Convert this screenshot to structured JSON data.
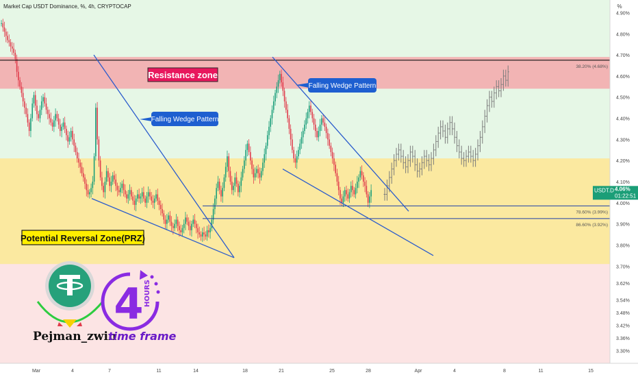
{
  "header": {
    "symbol_title": "Market Cap USDT Dominance, %, 4h, CRYPTOCAP",
    "unit_label": "%"
  },
  "colors": {
    "background_upper": "#e6f7e6",
    "background_lower": "#fce4e4",
    "resistance_zone": "#f2b4b4",
    "prz_zone": "#fbe9a0",
    "candle_up": "#1a9e7a",
    "candle_down": "#e03b4b",
    "projection": "#7a7a7a",
    "pattern_line": "#2b5ccc",
    "price_tag": "#1b9e77",
    "annotation_bg": "#1e5fd0",
    "resistance_label_bg": "#e8175d"
  },
  "chart_data": {
    "type": "candlestick",
    "ylim": [
      3.24,
      4.96
    ],
    "x_range": [
      0,
      930
    ],
    "y_ticks": [
      "4.90%",
      "4.80%",
      "4.70%",
      "4.60%",
      "4.50%",
      "4.40%",
      "4.30%",
      "4.20%",
      "4.10%",
      "4.00%",
      "3.90%",
      "3.80%",
      "3.70%",
      "3.62%",
      "3.54%",
      "3.48%",
      "3.42%",
      "3.36%",
      "3.30%"
    ],
    "x_ticks": [
      {
        "label": "Mar",
        "x": 53
      },
      {
        "label": "4",
        "x": 106
      },
      {
        "label": "7",
        "x": 160
      },
      {
        "label": "11",
        "x": 232
      },
      {
        "label": "14",
        "x": 286
      },
      {
        "label": "18",
        "x": 358
      },
      {
        "label": "21",
        "x": 411
      },
      {
        "label": "25",
        "x": 485
      },
      {
        "label": "28",
        "x": 538
      },
      {
        "label": "Apr",
        "x": 611
      },
      {
        "label": "4",
        "x": 664
      },
      {
        "label": "8",
        "x": 737
      },
      {
        "label": "11",
        "x": 790
      },
      {
        "label": "15",
        "x": 863
      }
    ],
    "resistance_zone": {
      "label": "Resistance zone",
      "low": 4.54,
      "high": 4.69
    },
    "prz_zone": {
      "label": "Potential Reversal Zone(PRZ)",
      "low": 3.71,
      "high": 4.21
    },
    "horizontal_levels": [
      {
        "name": "top-level",
        "value": 4.675,
        "label": "38.20% (4.68%)",
        "color": "#111111"
      },
      {
        "name": "fib-786",
        "value": 3.985,
        "label": "78.60% (3.99%)",
        "color": "#1c3fa8"
      },
      {
        "name": "fib-866",
        "value": 3.925,
        "label": "86.60% (3.92%)",
        "color": "#1c3fa8"
      }
    ],
    "current_price": {
      "symbol": "USDT.D",
      "value": "4.06%",
      "countdown": "01:22:51",
      "y_value": 4.06
    },
    "annotations": [
      {
        "text": "Falling Wedge Pattern"
      },
      {
        "text": "Falling Wedge Pattern"
      }
    ],
    "wedges": [
      {
        "upper": [
          [
            137,
            4.7
          ],
          [
            342,
            3.74
          ]
        ],
        "lower": [
          [
            134,
            4.02
          ],
          [
            342,
            3.74
          ]
        ]
      },
      {
        "upper": [
          [
            398,
            4.69
          ],
          [
            597,
            3.96
          ]
        ],
        "lower": [
          [
            413,
            4.16
          ],
          [
            633,
            3.75
          ]
        ]
      }
    ],
    "series": [
      {
        "name": "candles",
        "style": "filled",
        "x_start": 2,
        "step": 2.26,
        "close": [
          4.85,
          4.83,
          4.81,
          4.79,
          4.77,
          4.76,
          4.74,
          4.73,
          4.71,
          4.68,
          4.62,
          4.58,
          4.55,
          4.52,
          4.48,
          4.45,
          4.42,
          4.38,
          4.34,
          4.4,
          4.47,
          4.51,
          4.46,
          4.42,
          4.4,
          4.44,
          4.48,
          4.5,
          4.47,
          4.44,
          4.42,
          4.4,
          4.38,
          4.36,
          4.39,
          4.42,
          4.4,
          4.37,
          4.34,
          4.36,
          4.38,
          4.35,
          4.32,
          4.29,
          4.31,
          4.34,
          4.3,
          4.27,
          4.24,
          4.21,
          4.19,
          4.17,
          4.14,
          4.12,
          4.09,
          4.06,
          4.04,
          4.05,
          4.07,
          4.1,
          4.22,
          4.45,
          4.3,
          4.2,
          4.12,
          4.08,
          4.05,
          4.1,
          4.15,
          4.12,
          4.08,
          4.1,
          4.13,
          4.11,
          4.08,
          4.06,
          4.05,
          4.07,
          4.09,
          4.06,
          4.04,
          4.02,
          4.04,
          4.06,
          4.03,
          4.01,
          3.99,
          4.02,
          4.04,
          4.02,
          4.03,
          4.05,
          4.02,
          4.0,
          4.03,
          4.05,
          4.03,
          4.01,
          4.0,
          4.02,
          4.04,
          4.01,
          3.99,
          3.97,
          3.95,
          3.92,
          3.9,
          3.92,
          3.94,
          3.91,
          3.89,
          3.88,
          3.9,
          3.92,
          3.89,
          3.87,
          3.86,
          3.88,
          3.9,
          3.93,
          3.91,
          3.89,
          3.87,
          3.9,
          3.92,
          3.9,
          3.88,
          3.86,
          3.85,
          3.84,
          3.86,
          3.85,
          3.84,
          3.87,
          3.86,
          3.88,
          3.92,
          3.97,
          4.02,
          4.07,
          4.1,
          4.06,
          4.03,
          4.07,
          4.12,
          4.17,
          4.22,
          4.15,
          4.1,
          4.06,
          4.08,
          4.12,
          4.09,
          4.05,
          4.08,
          4.12,
          4.16,
          4.2,
          4.25,
          4.28,
          4.24,
          4.2,
          4.16,
          4.12,
          4.14,
          4.16,
          4.14,
          4.12,
          4.15,
          4.19,
          4.23,
          4.27,
          4.32,
          4.36,
          4.4,
          4.44,
          4.48,
          4.52,
          4.55,
          4.58,
          4.61,
          4.57,
          4.53,
          4.48,
          4.44,
          4.4,
          4.35,
          4.3,
          4.25,
          4.21,
          4.19,
          4.22,
          4.25,
          4.28,
          4.31,
          4.34,
          4.37,
          4.4,
          4.43,
          4.46,
          4.43,
          4.4,
          4.37,
          4.34,
          4.31,
          4.34,
          4.37,
          4.4,
          4.38,
          4.36,
          4.33,
          4.3,
          4.27,
          4.24,
          4.21,
          4.18,
          4.14,
          4.1,
          4.06,
          4.02,
          4.0,
          4.03,
          4.06,
          4.04,
          4.02,
          4.05,
          4.08,
          4.06,
          4.04,
          4.07,
          4.1,
          4.12,
          4.15,
          4.13,
          4.1,
          4.08,
          4.04,
          4.0,
          4.03,
          4.06
        ]
      },
      {
        "name": "projection",
        "style": "bar",
        "x_start": 562,
        "step": 3.4,
        "close": [
          4.04,
          4.08,
          4.12,
          4.16,
          4.2,
          4.23,
          4.25,
          4.22,
          4.19,
          4.17,
          4.2,
          4.24,
          4.22,
          4.18,
          4.15,
          4.16,
          4.19,
          4.22,
          4.2,
          4.18,
          4.21,
          4.25,
          4.29,
          4.33,
          4.36,
          4.34,
          4.31,
          4.35,
          4.38,
          4.35,
          4.31,
          4.27,
          4.24,
          4.21,
          4.2,
          4.22,
          4.24,
          4.22,
          4.2,
          4.23,
          4.27,
          4.31,
          4.36,
          4.41,
          4.46,
          4.5,
          4.48,
          4.52,
          4.55,
          4.53,
          4.56,
          4.6,
          4.58,
          4.62
        ]
      }
    ]
  }
}
